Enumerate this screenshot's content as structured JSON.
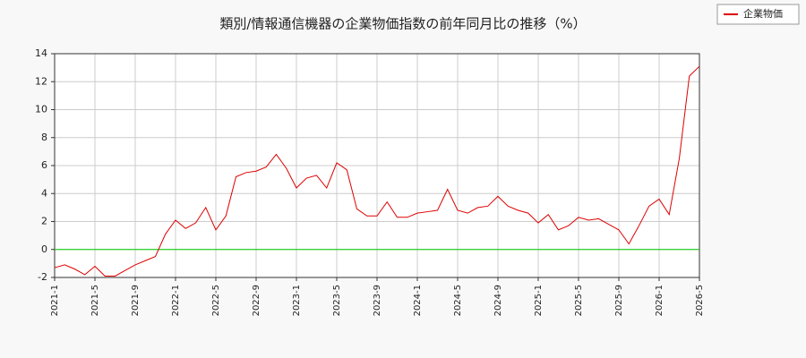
{
  "chart_data": {
    "type": "line",
    "title": "類別/情報通信機器の企業物価指数の前年同月比の推移（%）",
    "categories": [
      "2021-1",
      null,
      null,
      null,
      "2021-5",
      null,
      null,
      null,
      "2021-9",
      null,
      null,
      null,
      "2022-1",
      null,
      null,
      null,
      "2022-5",
      null,
      null,
      null,
      "2022-9",
      null,
      null,
      null,
      "2023-1",
      null,
      null,
      null,
      "2023-5",
      null,
      null,
      null,
      "2023-9",
      null,
      null,
      null,
      "2024-1",
      null,
      null,
      null,
      "2024-5",
      null,
      null,
      null,
      "2024-9",
      null,
      null,
      null,
      "2025-1",
      null,
      null,
      null,
      "2025-5",
      null,
      null,
      null,
      "2025-9",
      null,
      null,
      null,
      "2026-1",
      null,
      null,
      null,
      "2026-5"
    ],
    "series": [
      {
        "name": "企業物価",
        "color": "#dd0000",
        "values": [
          -1.3,
          -1.1,
          -1.4,
          -1.8,
          -1.2,
          -1.9,
          -1.9,
          -1.5,
          -1.1,
          -0.8,
          -0.5,
          1.1,
          2.1,
          1.5,
          1.9,
          3.0,
          1.4,
          2.4,
          5.2,
          5.5,
          5.6,
          5.9,
          6.8,
          5.8,
          4.4,
          5.1,
          5.3,
          4.4,
          6.2,
          5.7,
          2.9,
          2.4,
          2.4,
          3.4,
          2.3,
          2.3,
          2.6,
          2.7,
          2.8,
          4.3,
          2.8,
          2.6,
          3.0,
          3.1,
          3.8,
          3.1,
          2.8,
          2.6,
          1.9,
          2.5,
          1.4,
          1.7,
          2.3,
          2.1,
          2.2,
          1.8,
          1.4,
          0.4,
          1.7,
          3.1,
          3.6,
          2.5,
          6.5,
          12.4,
          13.1
        ]
      }
    ],
    "ylim": [
      -2,
      14
    ],
    "yticks": [
      -2,
      0,
      2,
      4,
      6,
      8,
      10,
      12,
      14
    ],
    "grid": true,
    "legend": "top-right",
    "reference_line": {
      "value": 0,
      "color": "#00cc00"
    }
  }
}
